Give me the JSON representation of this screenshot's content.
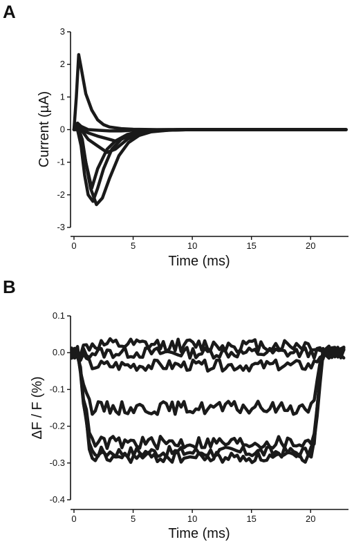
{
  "figure": {
    "panel_a_label": "A",
    "panel_b_label": "B"
  },
  "chart_data": [
    {
      "panel": "A",
      "type": "line",
      "xlabel": "Time (ms)",
      "ylabel": "Current (µA)",
      "xlim": [
        -0.4,
        23.2
      ],
      "ylim": [
        -3,
        3
      ],
      "xticks": [
        0,
        5,
        10,
        15,
        20
      ],
      "yticks": [
        3,
        2,
        1,
        0,
        -1,
        -2,
        -3
      ],
      "grid": false,
      "series": [
        {
          "values": [
            [
              0,
              0
            ],
            [
              0.2,
              1.0
            ],
            [
              0.4,
              2.3
            ],
            [
              0.6,
              1.9
            ],
            [
              1.0,
              1.1
            ],
            [
              1.5,
              0.6
            ],
            [
              2.0,
              0.3
            ],
            [
              2.5,
              0.15
            ],
            [
              3,
              0.08
            ],
            [
              4,
              0.03
            ],
            [
              5,
              0.01
            ],
            [
              7,
              0
            ],
            [
              23,
              0
            ]
          ]
        },
        {
          "values": [
            [
              0,
              0
            ],
            [
              0.3,
              0.2
            ],
            [
              0.6,
              0.1
            ],
            [
              1.2,
              0.0
            ],
            [
              2,
              -0.02
            ],
            [
              3,
              -0.04
            ],
            [
              4,
              -0.04
            ],
            [
              5,
              -0.02
            ],
            [
              6,
              -0.01
            ],
            [
              8,
              0
            ],
            [
              23,
              0
            ]
          ]
        },
        {
          "values": [
            [
              0,
              0
            ],
            [
              0.3,
              0.1
            ],
            [
              0.6,
              0
            ],
            [
              1.2,
              -0.1
            ],
            [
              2,
              -0.2
            ],
            [
              3,
              -0.3
            ],
            [
              3.5,
              -0.35
            ],
            [
              4.2,
              -0.25
            ],
            [
              5,
              -0.12
            ],
            [
              6,
              -0.05
            ],
            [
              7,
              -0.02
            ],
            [
              9,
              0
            ],
            [
              23,
              0
            ]
          ]
        },
        {
          "values": [
            [
              0,
              0
            ],
            [
              0.3,
              0.2
            ],
            [
              0.6,
              0
            ],
            [
              1.2,
              -0.3
            ],
            [
              2,
              -0.5
            ],
            [
              2.8,
              -0.7
            ],
            [
              3.5,
              -0.6
            ],
            [
              4.5,
              -0.3
            ],
            [
              5.5,
              -0.12
            ],
            [
              6.5,
              -0.05
            ],
            [
              8,
              -0.02
            ],
            [
              10,
              0
            ],
            [
              23,
              0
            ]
          ]
        },
        {
          "values": [
            [
              0,
              0
            ],
            [
              0.3,
              0.1
            ],
            [
              0.6,
              -0.2
            ],
            [
              1.0,
              -1.0
            ],
            [
              1.5,
              -1.8
            ],
            [
              2.0,
              -1.2
            ],
            [
              2.8,
              -0.6
            ],
            [
              3.5,
              -0.35
            ],
            [
              4.5,
              -0.15
            ],
            [
              5.5,
              -0.06
            ],
            [
              7,
              -0.02
            ],
            [
              9,
              0
            ],
            [
              23,
              0
            ]
          ]
        },
        {
          "values": [
            [
              0,
              0
            ],
            [
              0.3,
              0
            ],
            [
              0.6,
              -0.5
            ],
            [
              0.9,
              -1.4
            ],
            [
              1.2,
              -2.0
            ],
            [
              1.6,
              -2.2
            ],
            [
              2.0,
              -1.8
            ],
            [
              2.5,
              -1.2
            ],
            [
              3.2,
              -0.6
            ],
            [
              4,
              -0.3
            ],
            [
              5,
              -0.12
            ],
            [
              6.5,
              -0.04
            ],
            [
              8,
              -0.01
            ],
            [
              10,
              0
            ],
            [
              23,
              0
            ]
          ]
        },
        {
          "values": [
            [
              0,
              0
            ],
            [
              0.4,
              0
            ],
            [
              0.7,
              -0.3
            ],
            [
              1.0,
              -1.0
            ],
            [
              1.4,
              -1.8
            ],
            [
              1.9,
              -2.3
            ],
            [
              2.4,
              -2.1
            ],
            [
              3.0,
              -1.5
            ],
            [
              3.8,
              -0.8
            ],
            [
              4.6,
              -0.4
            ],
            [
              5.5,
              -0.18
            ],
            [
              6.5,
              -0.07
            ],
            [
              8,
              -0.02
            ],
            [
              10,
              0
            ],
            [
              23,
              0
            ]
          ]
        }
      ]
    },
    {
      "panel": "B",
      "type": "line",
      "xlabel": "Time (ms)",
      "ylabel": "ΔF / F (%)",
      "xlim": [
        -0.4,
        23.2
      ],
      "ylim": [
        -0.4,
        0.1
      ],
      "xticks": [
        0,
        5,
        10,
        15,
        20
      ],
      "yticks": [
        0.1,
        0.0,
        -0.1,
        -0.2,
        -0.3,
        -0.4
      ],
      "ytick_labels": [
        "0.1",
        "0.0",
        "-0.1",
        "-0.2",
        "-0.3",
        "-0.4"
      ],
      "grid": false,
      "series": [
        {
          "level": 0.02,
          "amp": 0.018,
          "seed": 1
        },
        {
          "level": 0.0,
          "amp": 0.015,
          "seed": 2
        },
        {
          "level": -0.035,
          "amp": 0.015,
          "seed": 3
        },
        {
          "level": -0.15,
          "amp": 0.018,
          "seed": 4
        },
        {
          "level": -0.245,
          "amp": 0.018,
          "seed": 5
        },
        {
          "level": -0.27,
          "amp": 0.015,
          "seed": 6
        },
        {
          "level": -0.285,
          "amp": 0.015,
          "seed": 7
        }
      ]
    }
  ]
}
